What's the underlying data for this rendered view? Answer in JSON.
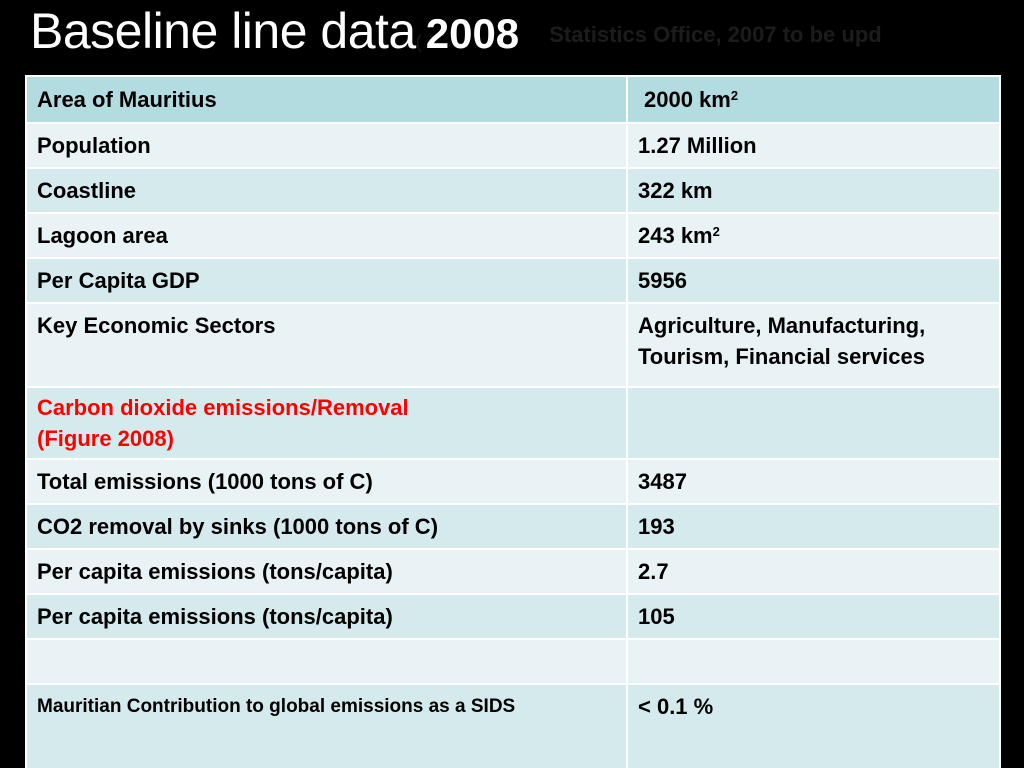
{
  "title": {
    "main": "Baseline line data",
    "paren": "(",
    "year": "2008",
    "source": "Statistics Office, 2007 to be upd"
  },
  "table": {
    "rows": [
      {
        "label": "Area of Mauritius",
        "value": "2000 km",
        "sup": "2"
      },
      {
        "label": "Population",
        "value": "1.27 Million"
      },
      {
        "label": "Coastline",
        "value": "322 km"
      },
      {
        "label": "Lagoon area",
        "value": "243 km",
        "sup": "2"
      },
      {
        "label": "Per Capita GDP",
        "value": "5956"
      },
      {
        "label": "Key Economic Sectors",
        "value_line1": "Agriculture, Manufacturing,",
        "value_line2": "Tourism, Financial services"
      },
      {
        "label_line1": "Carbon dioxide emissions/Removal",
        "label_line2": "(Figure 2008)",
        "value": ""
      },
      {
        "label": "Total emissions (1000 tons of C)",
        "value": "3487"
      },
      {
        "label": "CO2 removal by sinks (1000 tons of C)",
        "value": "193"
      },
      {
        "label": "Per capita emissions (tons/capita)",
        "value": "2.7"
      },
      {
        "label": "Per capita emissions (tons/capita)",
        "value": "105"
      },
      {
        "label": "",
        "value": ""
      },
      {
        "label": "Mauritian Contribution to global emissions  as a SIDS",
        "value": "< 0.1 %"
      }
    ]
  },
  "colors": {
    "background": "#000000",
    "header_row": "#b3dce1",
    "row_light": "#e9f3f5",
    "row_dark": "#d5eaed",
    "highlight_text": "#ff0000"
  }
}
